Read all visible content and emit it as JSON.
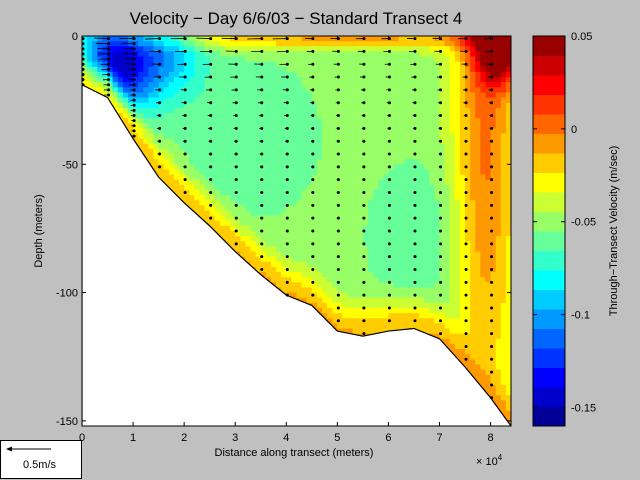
{
  "chart_data": {
    "type": "heatmap",
    "title": "Velocity − Day 6/6/03 − Standard Transect 4",
    "xlabel": "Distance along transect (meters)",
    "ylabel": "Depth (meters)",
    "x_multiplier_label": "× 10",
    "x_multiplier_exp": "4",
    "xlim": [
      0,
      8.4
    ],
    "ylim": [
      -152,
      0
    ],
    "x_ticks": [
      "0",
      "1",
      "2",
      "3",
      "4",
      "5",
      "6",
      "7",
      "8"
    ],
    "y_ticks": [
      "0",
      "-50",
      "-100",
      "-150"
    ],
    "colorbar": {
      "label": "Through−Transect Velocity (m/sec)",
      "range": [
        -0.16,
        0.05
      ],
      "tick_labels": [
        "0.05",
        "0",
        "-0.05",
        "-0.1",
        "-0.15"
      ],
      "tick_values": [
        0.05,
        0.0,
        -0.05,
        -0.1,
        -0.15
      ],
      "levels": 20
    },
    "bathymetry": [
      [
        0,
        -19
      ],
      [
        0.5,
        -24
      ],
      [
        1.0,
        -40
      ],
      [
        1.5,
        -55
      ],
      [
        2.0,
        -65
      ],
      [
        2.5,
        -74
      ],
      [
        3.0,
        -84
      ],
      [
        3.5,
        -93
      ],
      [
        4.0,
        -101
      ],
      [
        4.5,
        -105
      ],
      [
        5.0,
        -115
      ],
      [
        5.5,
        -117
      ],
      [
        6.0,
        -115
      ],
      [
        6.5,
        -114
      ],
      [
        7.0,
        -118
      ],
      [
        7.5,
        -129
      ],
      [
        8.0,
        -141
      ],
      [
        8.4,
        -152
      ]
    ],
    "velocity_field": {
      "background": -0.05,
      "features": [
        {
          "x": 0.6,
          "y": -12,
          "value": -0.15,
          "sx": 0.55,
          "sy": 14
        },
        {
          "x": 1.7,
          "y": -6,
          "value": -0.09,
          "sx": 0.5,
          "sy": 12
        },
        {
          "x": 3.2,
          "y": -40,
          "value": -0.065,
          "sx": 1.0,
          "sy": 22
        },
        {
          "x": 6.6,
          "y": -80,
          "value": -0.065,
          "sx": 0.7,
          "sy": 22
        },
        {
          "x": 8.2,
          "y": -4,
          "value": 0.045,
          "sx": 0.35,
          "sy": 10
        },
        {
          "x": 7.9,
          "y": -40,
          "value": 0.0,
          "sx": 0.45,
          "sy": 80
        },
        {
          "x": 5.0,
          "y": -1,
          "value": -0.01,
          "sx": 3.0,
          "sy": 3
        }
      ],
      "bottom_value": 0.0
    },
    "scale_arrow_label": "0.5m/s"
  }
}
